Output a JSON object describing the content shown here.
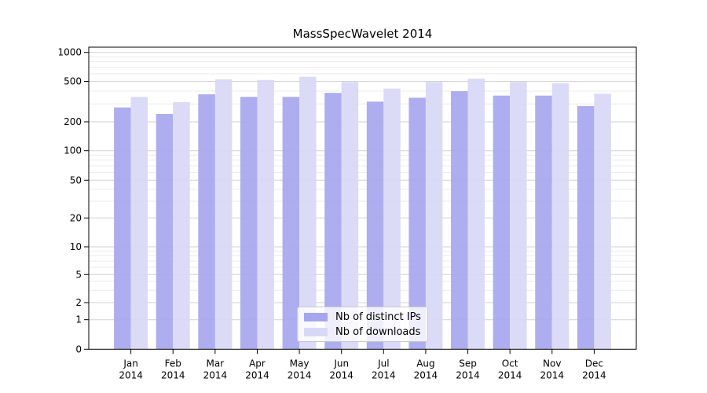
{
  "chart_data": {
    "type": "bar",
    "title": "MassSpecWavelet 2014",
    "categories": [
      "Jan",
      "Feb",
      "Mar",
      "Apr",
      "May",
      "Jun",
      "Jul",
      "Aug",
      "Sep",
      "Oct",
      "Nov",
      "Dec"
    ],
    "year": "2014",
    "series": [
      {
        "name": "Nb of distinct IPs",
        "color": "#a6a6ee",
        "values": [
          277,
          239,
          373,
          352,
          352,
          385,
          316,
          345,
          400,
          362,
          362,
          286
        ]
      },
      {
        "name": "Nb of downloads",
        "color": "#d8d8f6",
        "values": [
          352,
          312,
          524,
          517,
          558,
          493,
          425,
          493,
          534,
          493,
          478,
          378
        ]
      }
    ],
    "yticks": [
      0,
      1,
      2,
      5,
      10,
      20,
      50,
      100,
      200,
      500,
      1000
    ],
    "ylim": [
      0,
      1100
    ],
    "yscale": "log-like",
    "xlabel": "",
    "ylabel": "",
    "grid": "horizontal major and minor",
    "legend_position": "inside bottom-center",
    "colors": {
      "bar_dark": "#a6a6ee",
      "bar_light": "#d8d8f6",
      "grid_major": "#d2d2d2",
      "grid_minor": "#ebebeb",
      "axis": "#000000",
      "background": "#ffffff"
    }
  }
}
